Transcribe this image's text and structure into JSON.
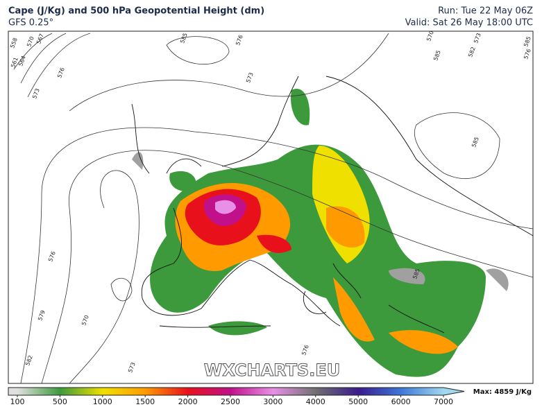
{
  "header": {
    "title": "Cape (J/Kg) and 500 hPa Geopotential Height (dm)",
    "model": "GFS 0.25°",
    "run": "Run: Tue 22 May 06Z",
    "valid": "Valid: Sat 26 May 18:00 UTC"
  },
  "map": {
    "watermark": "WXCHARTS.EU",
    "contour_labels": [
      558,
      561,
      564,
      567,
      570,
      573,
      576,
      585,
      576,
      573,
      570,
      582,
      585,
      573,
      576,
      579,
      570,
      582,
      573,
      576,
      585,
      585,
      576,
      585
    ]
  },
  "colorbar": {
    "ticks": [
      100,
      500,
      1000,
      1500,
      2000,
      2500,
      3000,
      4000,
      5000,
      6000,
      7000
    ],
    "colors": [
      "#e0e0e0",
      "#3c9a3c",
      "#f0e000",
      "#ff9a00",
      "#e8101a",
      "#c0108a",
      "#e890e8",
      "#707070",
      "#3a1a8c",
      "#3c78d8",
      "#a0d8f0"
    ],
    "max_label": "Max: 4859 J/Kg"
  }
}
